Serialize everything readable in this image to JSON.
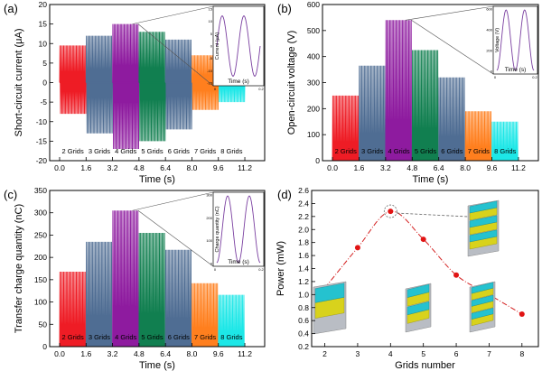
{
  "figure": {
    "colors": {
      "g2": "#ee1c25",
      "g3": "#4f6d93",
      "g4": "#8e1b9f",
      "g5": "#117f50",
      "g6": "#4f6d93",
      "g7": "#ff7f1e",
      "g8": "#1de7e7",
      "inset_line": "#7a3fa0",
      "power_dot": "#e11414",
      "power_fit": "#d42020"
    },
    "icons": [
      "electrode-grid-2-icon",
      "electrode-grid-4-icon",
      "electrode-grid-6-icon",
      "electrode-grid-8-icon"
    ]
  },
  "chart_data": [
    {
      "panel": "(a)",
      "type": "line",
      "xlabel": "Time (s)",
      "ylabel": "Short-circuit current (μA)",
      "xlim": [
        -0.6,
        12.4
      ],
      "ylim": [
        -20,
        20
      ],
      "xticks": [
        "0.0",
        "1.6",
        "3.2",
        "4.8",
        "6.4",
        "8.0",
        "9.6",
        "11.2"
      ],
      "yticks": [
        "-20",
        "-15",
        "-10",
        "-5",
        "0",
        "5",
        "10",
        "15",
        "20"
      ],
      "bipolar": true,
      "series": [
        {
          "name": "2 Grids",
          "t_range": [
            0.0,
            1.6
          ],
          "peak": 9.5,
          "trough": -8
        },
        {
          "name": "3 Grids",
          "t_range": [
            1.6,
            3.2
          ],
          "peak": 12,
          "trough": -13
        },
        {
          "name": "4 Grids",
          "t_range": [
            3.2,
            4.8
          ],
          "peak": 15,
          "trough": -17
        },
        {
          "name": "5 Grids",
          "t_range": [
            4.8,
            6.4
          ],
          "peak": 13,
          "trough": -15
        },
        {
          "name": "6 Grids",
          "t_range": [
            6.4,
            8.0
          ],
          "peak": 11,
          "trough": -12
        },
        {
          "name": "7 Grids",
          "t_range": [
            8.0,
            9.6
          ],
          "peak": 7,
          "trough": -7
        },
        {
          "name": "8 Grids",
          "t_range": [
            9.6,
            11.2
          ],
          "peak": 3,
          "trough": -5
        }
      ],
      "inset": {
        "xlabel": "Time (s)",
        "ylabel": "Current (μA)",
        "yticks": [
          "15",
          "10",
          "5",
          "0",
          "-5",
          "-10",
          "-15"
        ],
        "xticks": [
          "0",
          "0.2"
        ]
      }
    },
    {
      "panel": "(b)",
      "type": "line",
      "xlabel": "Time (s)",
      "ylabel": "Open-circuit voltage (V)",
      "xlim": [
        -0.6,
        12.4
      ],
      "ylim": [
        0,
        600
      ],
      "xticks": [
        "0.0",
        "1.6",
        "3.2",
        "4.8",
        "6.4",
        "8.0",
        "9.6",
        "11.2"
      ],
      "yticks": [
        "0",
        "100",
        "200",
        "300",
        "400",
        "500",
        "600"
      ],
      "bipolar": false,
      "series": [
        {
          "name": "2 Grids",
          "t_range": [
            0.0,
            1.6
          ],
          "peak": 250
        },
        {
          "name": "3 Grids",
          "t_range": [
            1.6,
            3.2
          ],
          "peak": 365
        },
        {
          "name": "4 Grids",
          "t_range": [
            3.2,
            4.8
          ],
          "peak": 540
        },
        {
          "name": "5 Grids",
          "t_range": [
            4.8,
            6.4
          ],
          "peak": 425
        },
        {
          "name": "6 Grids",
          "t_range": [
            6.4,
            8.0
          ],
          "peak": 320
        },
        {
          "name": "7 Grids",
          "t_range": [
            8.0,
            9.6
          ],
          "peak": 190
        },
        {
          "name": "8 Grids",
          "t_range": [
            9.6,
            11.2
          ],
          "peak": 150
        }
      ],
      "inset": {
        "xlabel": "Time (s)",
        "ylabel": "Voltage (V)",
        "yticks": [
          "600",
          "400",
          "200",
          "0"
        ],
        "xticks": [
          "0",
          "0.2"
        ]
      }
    },
    {
      "panel": "(c)",
      "type": "line",
      "xlabel": "Time (s)",
      "ylabel": "Transfer charge quantity (nC)",
      "xlim": [
        -0.6,
        12.4
      ],
      "ylim": [
        0,
        350
      ],
      "xticks": [
        "0.0",
        "1.6",
        "3.2",
        "4.8",
        "6.4",
        "8.0",
        "9.6",
        "11.2"
      ],
      "yticks": [
        "0",
        "50",
        "100",
        "150",
        "200",
        "250",
        "300",
        "350"
      ],
      "bipolar": false,
      "series": [
        {
          "name": "2 Grids",
          "t_range": [
            0.0,
            1.6
          ],
          "peak": 168
        },
        {
          "name": "3 Grids",
          "t_range": [
            1.6,
            3.2
          ],
          "peak": 235
        },
        {
          "name": "4 Grids",
          "t_range": [
            3.2,
            4.8
          ],
          "peak": 305
        },
        {
          "name": "5 Grids",
          "t_range": [
            4.8,
            6.4
          ],
          "peak": 255
        },
        {
          "name": "6 Grids",
          "t_range": [
            6.4,
            8.0
          ],
          "peak": 217
        },
        {
          "name": "7 Grids",
          "t_range": [
            8.0,
            9.6
          ],
          "peak": 142
        },
        {
          "name": "8 Grids",
          "t_range": [
            9.6,
            11.2
          ],
          "peak": 116
        }
      ],
      "inset": {
        "xlabel": "Time (s)",
        "ylabel": "Charge quantity (nC)",
        "yticks": [
          "300",
          "200",
          "100",
          "0"
        ],
        "xticks": [
          "0",
          "0.2"
        ]
      }
    },
    {
      "panel": "(d)",
      "type": "scatter",
      "xlabel": "Grids number",
      "ylabel": "Power (mW)",
      "xlim": [
        1.6,
        8.5
      ],
      "ylim": [
        0.2,
        2.6
      ],
      "xticks": [
        "2",
        "3",
        "4",
        "5",
        "6",
        "7",
        "8"
      ],
      "yticks": [
        "0.2",
        "0.4",
        "0.6",
        "0.8",
        "1.0",
        "1.2",
        "1.4",
        "1.6",
        "1.8",
        "2.0",
        "2.2",
        "2.4",
        "2.6"
      ],
      "x": [
        2,
        3,
        4,
        5,
        6,
        7,
        8
      ],
      "y": [
        1.1,
        1.72,
        2.28,
        1.85,
        1.3,
        1.0,
        0.7
      ],
      "fit": "smooth curve",
      "highlight_x": 4
    }
  ]
}
